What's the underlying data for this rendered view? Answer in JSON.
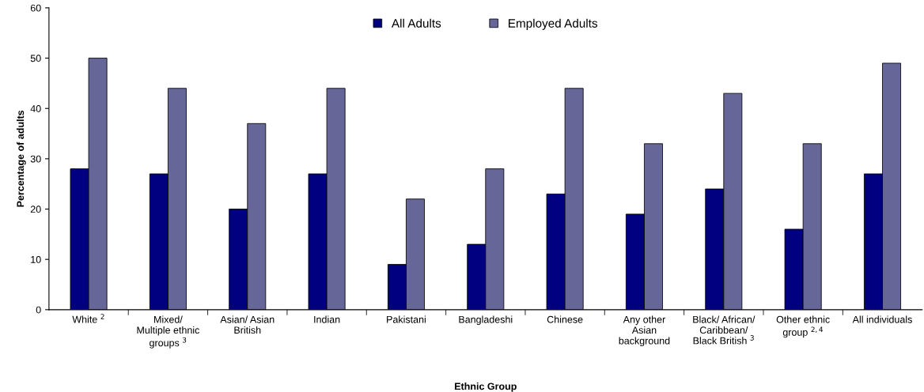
{
  "chart_data": {
    "type": "bar",
    "xlabel": "Ethnic Group",
    "ylabel": "Percentage of adults",
    "categories": [
      "White $^{2}$",
      "Mixed/\nMultiple ethnic\ngroups $^{3}$",
      "Asian/ Asian\nBritish",
      "Indian",
      "Pakistani",
      "Bangladeshi",
      "Chinese",
      "Any other\nAsian\nbackground",
      "Black/ African/\nCaribbean/\nBlack British $^{3}$",
      "Other ethnic\ngroup $^{2,4}$",
      "All individuals"
    ],
    "series": [
      {
        "name": "All Adults",
        "color": "#000080",
        "values": [
          28,
          27,
          20,
          27,
          9,
          13,
          23,
          19,
          24,
          16,
          27
        ]
      },
      {
        "name": "Employed Adults",
        "color": "#666699",
        "values": [
          50,
          44,
          37,
          44,
          22,
          28,
          44,
          33,
          43,
          33,
          49
        ]
      }
    ],
    "ylim": [
      0,
      60
    ],
    "yticks": [
      0,
      10,
      20,
      30,
      40,
      50,
      60
    ],
    "grid": false,
    "legend": "top"
  }
}
